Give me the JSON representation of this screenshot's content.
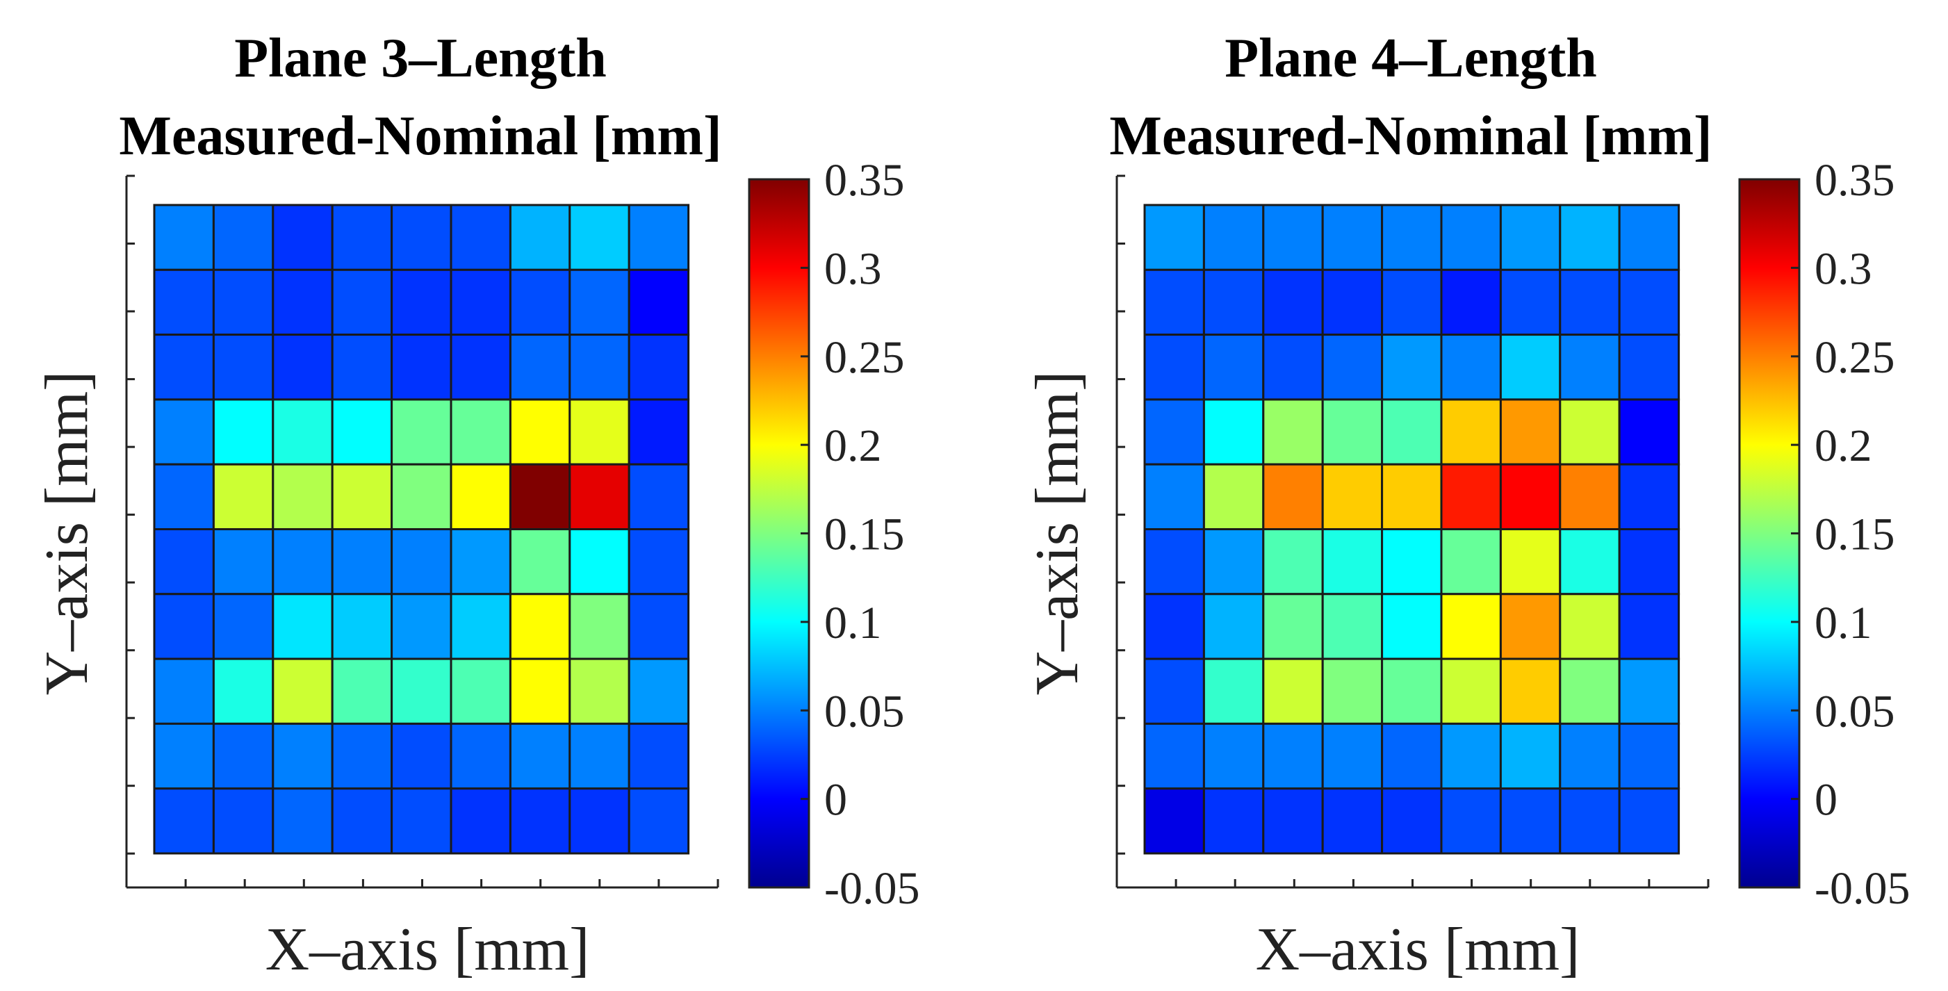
{
  "chart_data": [
    {
      "type": "heatmap",
      "title": "Plane 3–Length",
      "subtitle": "Measured-Nominal [mm]",
      "xlabel": "X–axis [mm]",
      "ylabel": "Y–axis [mm]",
      "colorbar": {
        "min": -0.05,
        "max": 0.35,
        "ticks": [
          "0.35",
          "0.3",
          "0.25",
          "0.2",
          "0.15",
          "0.1",
          "0.05",
          "0",
          "-0.05"
        ],
        "colormap": "jet"
      },
      "grid": true,
      "rows": [
        [
          0.05,
          0.04,
          0.02,
          0.03,
          0.03,
          0.03,
          0.07,
          0.08,
          0.05
        ],
        [
          0.03,
          0.03,
          0.02,
          0.03,
          0.02,
          0.02,
          0.03,
          0.04,
          0.0
        ],
        [
          0.03,
          0.03,
          0.02,
          0.03,
          0.02,
          0.02,
          0.04,
          0.04,
          0.02
        ],
        [
          0.05,
          0.1,
          0.11,
          0.1,
          0.14,
          0.14,
          0.2,
          0.19,
          0.01
        ],
        [
          0.04,
          0.18,
          0.17,
          0.18,
          0.15,
          0.2,
          0.35,
          0.31,
          0.03
        ],
        [
          0.03,
          0.05,
          0.05,
          0.05,
          0.05,
          0.06,
          0.14,
          0.1,
          0.03
        ],
        [
          0.03,
          0.04,
          0.09,
          0.08,
          0.06,
          0.08,
          0.2,
          0.15,
          0.03
        ],
        [
          0.05,
          0.11,
          0.18,
          0.13,
          0.12,
          0.13,
          0.2,
          0.17,
          0.06
        ],
        [
          0.05,
          0.04,
          0.05,
          0.04,
          0.03,
          0.04,
          0.05,
          0.05,
          0.03
        ],
        [
          0.03,
          0.03,
          0.04,
          0.03,
          0.03,
          0.02,
          0.02,
          0.02,
          0.03
        ]
      ]
    },
    {
      "type": "heatmap",
      "title": "Plane 4–Length",
      "subtitle": "Measured-Nominal [mm]",
      "xlabel": "X–axis [mm]",
      "ylabel": "Y–axis [mm]",
      "colorbar": {
        "min": -0.05,
        "max": 0.35,
        "ticks": [
          "0.35",
          "0.3",
          "0.25",
          "0.2",
          "0.15",
          "0.1",
          "0.05",
          "0",
          "-0.05"
        ],
        "colormap": "jet"
      },
      "grid": true,
      "rows": [
        [
          0.06,
          0.05,
          0.05,
          0.05,
          0.05,
          0.05,
          0.06,
          0.07,
          0.05
        ],
        [
          0.03,
          0.03,
          0.02,
          0.02,
          0.03,
          0.01,
          0.03,
          0.03,
          0.03
        ],
        [
          0.03,
          0.04,
          0.03,
          0.04,
          0.06,
          0.05,
          0.08,
          0.05,
          0.03
        ],
        [
          0.04,
          0.1,
          0.16,
          0.14,
          0.13,
          0.22,
          0.24,
          0.18,
          0.0
        ],
        [
          0.05,
          0.17,
          0.25,
          0.22,
          0.22,
          0.29,
          0.3,
          0.25,
          0.02
        ],
        [
          0.03,
          0.06,
          0.13,
          0.11,
          0.1,
          0.14,
          0.19,
          0.11,
          0.02
        ],
        [
          0.02,
          0.07,
          0.14,
          0.13,
          0.1,
          0.2,
          0.24,
          0.18,
          0.02
        ],
        [
          0.03,
          0.12,
          0.18,
          0.15,
          0.14,
          0.18,
          0.22,
          0.15,
          0.06
        ],
        [
          0.04,
          0.05,
          0.05,
          0.05,
          0.04,
          0.06,
          0.07,
          0.05,
          0.04
        ],
        [
          -0.01,
          0.02,
          0.02,
          0.02,
          0.02,
          0.03,
          0.03,
          0.03,
          0.03
        ]
      ]
    }
  ]
}
